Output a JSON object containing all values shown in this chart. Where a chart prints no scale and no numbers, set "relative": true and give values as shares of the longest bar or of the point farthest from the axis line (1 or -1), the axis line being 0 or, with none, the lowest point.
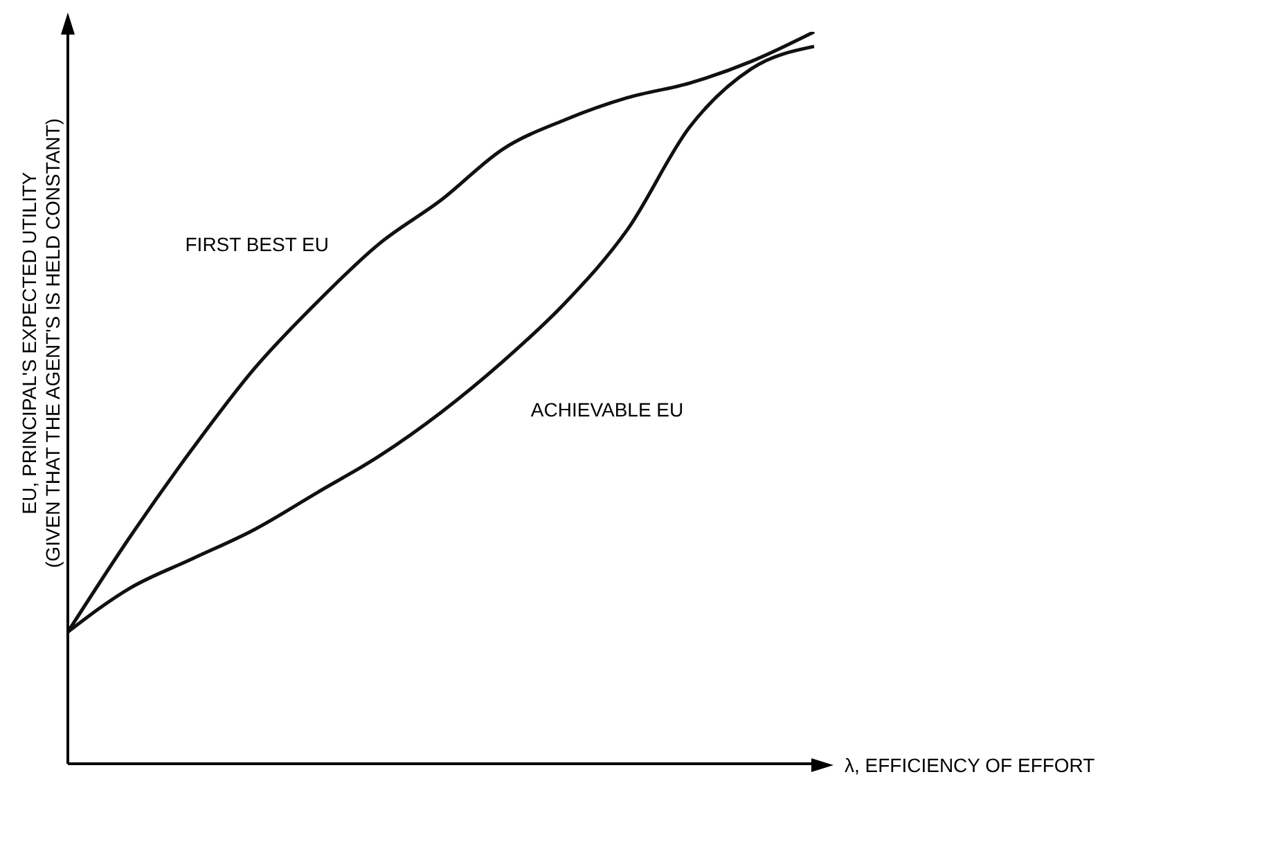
{
  "chart_data": {
    "type": "line",
    "relative": true,
    "xlabel": "λ, EFFICIENCY OF EFFORT",
    "ylabel": "EU, PRINCIPAL'S EXPECTED UTILITY\n(GIVEN THAT THE AGENT'S IS HELD CONSTANT)",
    "categories": [
      null,
      null,
      null,
      null,
      null,
      null,
      null,
      null,
      null,
      null,
      null,
      null,
      null
    ],
    "series": [
      {
        "name": "FIRST BEST EU",
        "color": "#111111",
        "values": [
          0.18,
          0.31,
          0.43,
          0.54,
          0.63,
          0.71,
          0.77,
          0.84,
          0.88,
          0.91,
          0.93,
          0.96,
          1.0
        ]
      },
      {
        "name": "ACHIEVABLE EU",
        "color": "#111111",
        "values": [
          0.18,
          0.24,
          0.28,
          0.32,
          0.37,
          0.42,
          0.48,
          0.55,
          0.63,
          0.73,
          0.87,
          0.95,
          0.98
        ]
      }
    ],
    "grid": false,
    "legend": false,
    "marker": "none",
    "line_style": "solid"
  }
}
